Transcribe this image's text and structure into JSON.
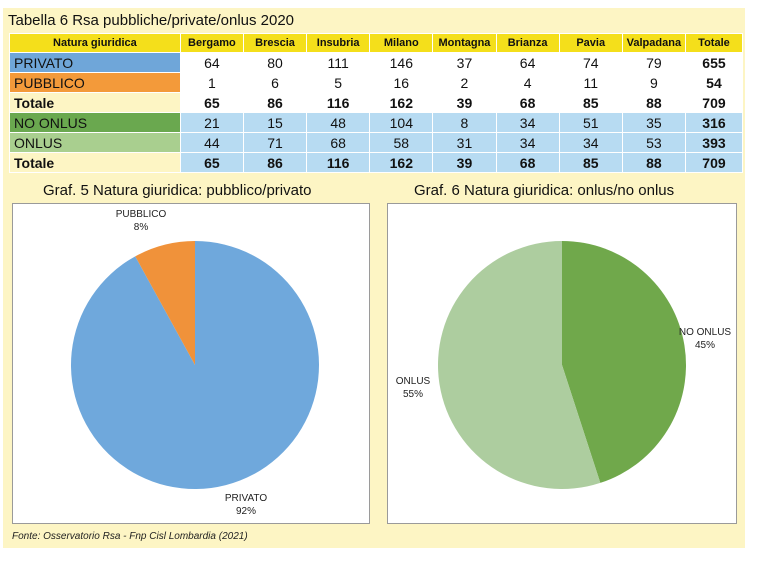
{
  "table": {
    "title": "Tabella 6  Rsa pubbliche/private/onlus 2020",
    "headers": [
      "Natura giuridica",
      "Bergamo",
      "Brescia",
      "Insubria",
      "Milano",
      "Montagna",
      "Brianza",
      "Pavia",
      "Valpadana",
      "Totale"
    ],
    "rows": [
      {
        "label": "PRIVATO",
        "values": [
          "64",
          "80",
          "111",
          "146",
          "37",
          "64",
          "74",
          "79",
          "655"
        ]
      },
      {
        "label": "PUBBLICO",
        "values": [
          "1",
          "6",
          "5",
          "16",
          "2",
          "4",
          "11",
          "9",
          "54"
        ]
      },
      {
        "label": "Totale",
        "values": [
          "65",
          "86",
          "116",
          "162",
          "39",
          "68",
          "85",
          "88",
          "709"
        ]
      },
      {
        "label": "NO ONLUS",
        "values": [
          "21",
          "15",
          "48",
          "104",
          "8",
          "34",
          "51",
          "35",
          "316"
        ]
      },
      {
        "label": "ONLUS",
        "values": [
          "44",
          "71",
          "68",
          "58",
          "31",
          "34",
          "34",
          "53",
          "393"
        ]
      },
      {
        "label": "Totale",
        "values": [
          "65",
          "86",
          "116",
          "162",
          "39",
          "68",
          "85",
          "88",
          "709"
        ]
      }
    ]
  },
  "chart_data": [
    {
      "type": "pie",
      "title": "Graf. 5 Natura giuridica: pubblico/privato",
      "slices": [
        {
          "label": "PRIVATO",
          "percent_label": "92%",
          "value": 92,
          "color": "#6fa8dc"
        },
        {
          "label": "PUBBLICO",
          "percent_label": "8%",
          "value": 8,
          "color": "#f0923a"
        }
      ]
    },
    {
      "type": "pie",
      "title": "Graf. 6 Natura giuridica: onlus/no onlus",
      "slices": [
        {
          "label": "NO ONLUS",
          "percent_label": "45%",
          "value": 45,
          "color": "#70a84b"
        },
        {
          "label": "ONLUS",
          "percent_label": "55%",
          "value": 55,
          "color": "#adcd9f"
        }
      ]
    }
  ],
  "source": "Fonte: Osservatorio Rsa - Fnp Cisl Lombardia (2021)"
}
